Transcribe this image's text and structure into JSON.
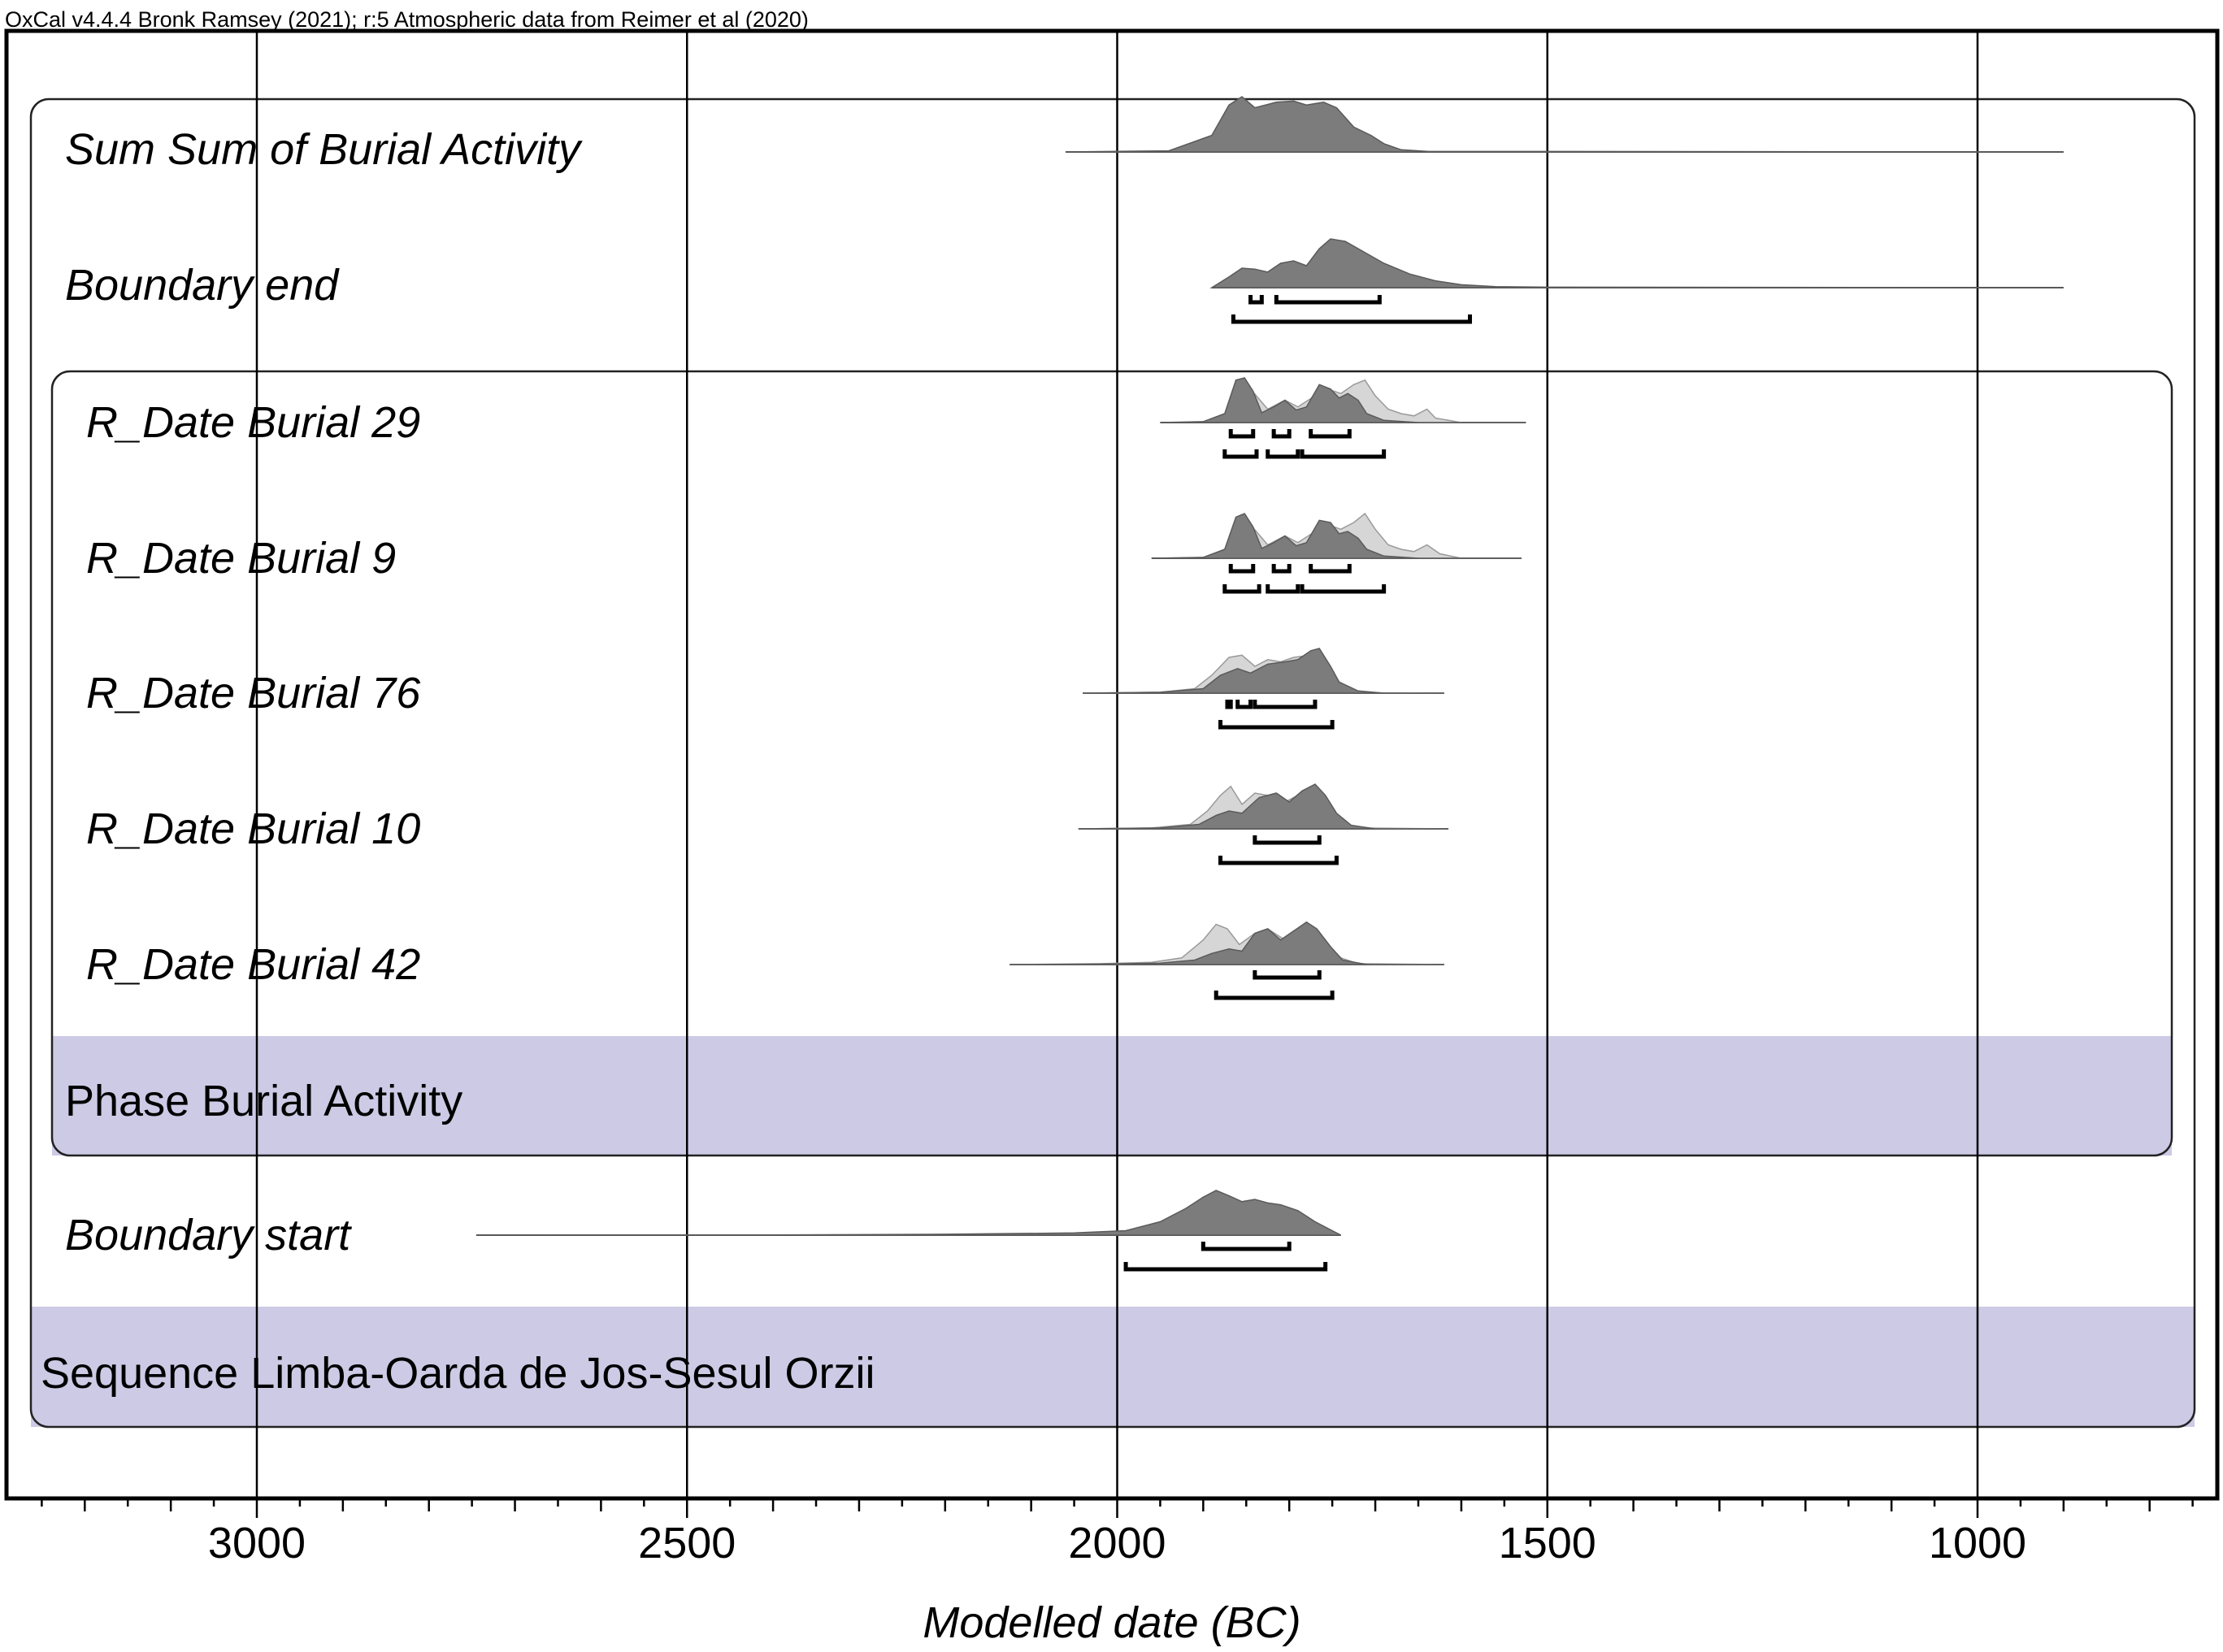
{
  "credit": "OxCal v4.4.4 Bronk Ramsey (2021); r:5 Atmospheric data from Reimer et al (2020)",
  "chart_data": {
    "type": "oxcal-multiplot",
    "x_axis": {
      "label": "Modelled date (BC)",
      "range": [
        3250,
        700
      ],
      "reversed": true,
      "major_ticks": [
        3000,
        2500,
        2000,
        1500,
        1000
      ],
      "minor_tick_step": 50,
      "grid_at": [
        3000,
        2500,
        2000,
        1500,
        1000
      ]
    },
    "group_colors": {
      "phase_band": "#cdcae6",
      "posterior": "#7c7c7c",
      "prior": "#d6d6d6",
      "frame": "#222222"
    },
    "rows": [
      {
        "label": "Sum Sum of Burial Activity",
        "kind": "sum",
        "range": [
          2060,
          900
        ],
        "posterior": [
          [
            2060,
            0
          ],
          [
            1940,
            0.02
          ],
          [
            1890,
            0.3
          ],
          [
            1870,
            0.85
          ],
          [
            1855,
            1
          ],
          [
            1840,
            0.8
          ],
          [
            1815,
            0.9
          ],
          [
            1795,
            0.92
          ],
          [
            1780,
            0.85
          ],
          [
            1760,
            0.9
          ],
          [
            1745,
            0.8
          ],
          [
            1725,
            0.45
          ],
          [
            1705,
            0.3
          ],
          [
            1690,
            0.15
          ],
          [
            1670,
            0.04
          ],
          [
            1640,
            0.01
          ],
          [
            900,
            0
          ]
        ],
        "ranges_68": [],
        "ranges_95": []
      },
      {
        "label": "Boundary end",
        "kind": "boundary",
        "range": [
          1890,
          900
        ],
        "posterior": [
          [
            1890,
            0
          ],
          [
            1870,
            0.22
          ],
          [
            1855,
            0.4
          ],
          [
            1840,
            0.38
          ],
          [
            1825,
            0.32
          ],
          [
            1810,
            0.5
          ],
          [
            1795,
            0.55
          ],
          [
            1780,
            0.45
          ],
          [
            1765,
            0.8
          ],
          [
            1752,
            1
          ],
          [
            1735,
            0.95
          ],
          [
            1715,
            0.75
          ],
          [
            1690,
            0.5
          ],
          [
            1660,
            0.28
          ],
          [
            1630,
            0.14
          ],
          [
            1600,
            0.06
          ],
          [
            1560,
            0.02
          ],
          [
            1500,
            0.01
          ],
          [
            900,
            0
          ]
        ],
        "ranges_68": [
          [
            1845,
            1832
          ],
          [
            1815,
            1695
          ]
        ],
        "ranges_95": [
          [
            1865,
            1590
          ]
        ]
      },
      {
        "label": "R_Date Burial 29",
        "kind": "date",
        "range": [
          1950,
          1525
        ],
        "prior": [
          [
            1880,
            0
          ],
          [
            1860,
            0.7
          ],
          [
            1845,
            0.75
          ],
          [
            1825,
            0.3
          ],
          [
            1805,
            0.5
          ],
          [
            1790,
            0.35
          ],
          [
            1770,
            0.6
          ],
          [
            1755,
            0.75
          ],
          [
            1740,
            0.65
          ],
          [
            1725,
            0.85
          ],
          [
            1712,
            0.95
          ],
          [
            1700,
            0.6
          ],
          [
            1685,
            0.3
          ],
          [
            1670,
            0.2
          ],
          [
            1655,
            0.15
          ],
          [
            1640,
            0.3
          ],
          [
            1630,
            0.1
          ],
          [
            1600,
            0
          ],
          [
            1525,
            0
          ]
        ],
        "posterior": [
          [
            1950,
            0
          ],
          [
            1900,
            0.02
          ],
          [
            1875,
            0.2
          ],
          [
            1862,
            0.95
          ],
          [
            1852,
            1
          ],
          [
            1842,
            0.7
          ],
          [
            1832,
            0.22
          ],
          [
            1818,
            0.35
          ],
          [
            1805,
            0.5
          ],
          [
            1792,
            0.28
          ],
          [
            1780,
            0.35
          ],
          [
            1765,
            0.85
          ],
          [
            1752,
            0.75
          ],
          [
            1742,
            0.55
          ],
          [
            1732,
            0.65
          ],
          [
            1720,
            0.5
          ],
          [
            1710,
            0.2
          ],
          [
            1690,
            0.05
          ],
          [
            1650,
            0
          ],
          [
            1525,
            0
          ]
        ],
        "ranges_68": [
          [
            1868,
            1842
          ],
          [
            1818,
            1800
          ],
          [
            1775,
            1730
          ]
        ],
        "ranges_95": [
          [
            1875,
            1838
          ],
          [
            1825,
            1790
          ],
          [
            1785,
            1690
          ]
        ]
      },
      {
        "label": "R_Date Burial 9",
        "kind": "date",
        "range": [
          1960,
          1530
        ],
        "prior": [
          [
            1880,
            0
          ],
          [
            1860,
            0.6
          ],
          [
            1845,
            0.75
          ],
          [
            1825,
            0.3
          ],
          [
            1805,
            0.5
          ],
          [
            1790,
            0.35
          ],
          [
            1770,
            0.6
          ],
          [
            1755,
            0.75
          ],
          [
            1740,
            0.65
          ],
          [
            1725,
            0.8
          ],
          [
            1712,
            1
          ],
          [
            1700,
            0.65
          ],
          [
            1685,
            0.3
          ],
          [
            1670,
            0.2
          ],
          [
            1655,
            0.15
          ],
          [
            1640,
            0.3
          ],
          [
            1625,
            0.1
          ],
          [
            1600,
            0
          ],
          [
            1530,
            0
          ]
        ],
        "posterior": [
          [
            1960,
            0
          ],
          [
            1900,
            0.02
          ],
          [
            1875,
            0.2
          ],
          [
            1862,
            0.92
          ],
          [
            1852,
            1
          ],
          [
            1842,
            0.7
          ],
          [
            1832,
            0.22
          ],
          [
            1818,
            0.35
          ],
          [
            1805,
            0.5
          ],
          [
            1792,
            0.28
          ],
          [
            1780,
            0.35
          ],
          [
            1765,
            0.85
          ],
          [
            1752,
            0.8
          ],
          [
            1742,
            0.55
          ],
          [
            1732,
            0.6
          ],
          [
            1720,
            0.45
          ],
          [
            1710,
            0.2
          ],
          [
            1690,
            0.05
          ],
          [
            1650,
            0
          ],
          [
            1530,
            0
          ]
        ],
        "ranges_68": [
          [
            1868,
            1842
          ],
          [
            1818,
            1800
          ],
          [
            1775,
            1730
          ]
        ],
        "ranges_95": [
          [
            1875,
            1835
          ],
          [
            1825,
            1790
          ],
          [
            1785,
            1690
          ]
        ]
      },
      {
        "label": "R_Date Burial 76",
        "kind": "date",
        "range": [
          2040,
          1620
        ],
        "prior": [
          [
            2040,
            0
          ],
          [
            1950,
            0.02
          ],
          [
            1910,
            0.1
          ],
          [
            1890,
            0.4
          ],
          [
            1870,
            0.8
          ],
          [
            1855,
            0.85
          ],
          [
            1840,
            0.6
          ],
          [
            1825,
            0.75
          ],
          [
            1810,
            0.7
          ],
          [
            1795,
            0.8
          ],
          [
            1775,
            0.85
          ],
          [
            1760,
            0.75
          ],
          [
            1745,
            0.3
          ],
          [
            1730,
            0.05
          ],
          [
            1700,
            0.01
          ],
          [
            1620,
            0
          ]
        ],
        "posterior": [
          [
            2040,
            0
          ],
          [
            1950,
            0.02
          ],
          [
            1900,
            0.1
          ],
          [
            1880,
            0.4
          ],
          [
            1860,
            0.55
          ],
          [
            1845,
            0.45
          ],
          [
            1825,
            0.65
          ],
          [
            1805,
            0.7
          ],
          [
            1790,
            0.75
          ],
          [
            1775,
            0.95
          ],
          [
            1765,
            1
          ],
          [
            1752,
            0.6
          ],
          [
            1742,
            0.25
          ],
          [
            1720,
            0.05
          ],
          [
            1690,
            0
          ],
          [
            1620,
            0
          ]
        ],
        "ranges_68": [
          [
            1872,
            1868
          ],
          [
            1860,
            1845
          ],
          [
            1840,
            1770
          ]
        ],
        "ranges_95": [
          [
            1880,
            1750
          ]
        ]
      },
      {
        "label": "R_Date Burial 10",
        "kind": "date",
        "range": [
          2045,
          1615
        ],
        "prior": [
          [
            2045,
            0
          ],
          [
            1960,
            0.02
          ],
          [
            1915,
            0.1
          ],
          [
            1895,
            0.4
          ],
          [
            1880,
            0.75
          ],
          [
            1868,
            0.95
          ],
          [
            1855,
            0.55
          ],
          [
            1840,
            0.8
          ],
          [
            1825,
            0.75
          ],
          [
            1805,
            0.6
          ],
          [
            1785,
            0.8
          ],
          [
            1770,
            0.85
          ],
          [
            1755,
            0.45
          ],
          [
            1740,
            0.15
          ],
          [
            1720,
            0.02
          ],
          [
            1615,
            0
          ]
        ],
        "posterior": [
          [
            2045,
            0
          ],
          [
            1950,
            0.02
          ],
          [
            1905,
            0.1
          ],
          [
            1885,
            0.3
          ],
          [
            1870,
            0.4
          ],
          [
            1855,
            0.35
          ],
          [
            1835,
            0.7
          ],
          [
            1815,
            0.8
          ],
          [
            1800,
            0.6
          ],
          [
            1785,
            0.85
          ],
          [
            1770,
            1
          ],
          [
            1758,
            0.75
          ],
          [
            1745,
            0.35
          ],
          [
            1728,
            0.08
          ],
          [
            1700,
            0
          ],
          [
            1615,
            0
          ]
        ],
        "ranges_68": [
          [
            1840,
            1765
          ]
        ],
        "ranges_95": [
          [
            1880,
            1745
          ]
        ]
      },
      {
        "label": "R_Date Burial 42",
        "kind": "date",
        "range": [
          2125,
          1620
        ],
        "prior": [
          [
            2125,
            0
          ],
          [
            2020,
            0.02
          ],
          [
            1960,
            0.05
          ],
          [
            1925,
            0.15
          ],
          [
            1900,
            0.55
          ],
          [
            1885,
            0.9
          ],
          [
            1872,
            0.8
          ],
          [
            1858,
            0.45
          ],
          [
            1840,
            0.7
          ],
          [
            1825,
            0.8
          ],
          [
            1805,
            0.55
          ],
          [
            1785,
            0.75
          ],
          [
            1770,
            0.8
          ],
          [
            1755,
            0.45
          ],
          [
            1740,
            0.15
          ],
          [
            1720,
            0.02
          ],
          [
            1620,
            0
          ]
        ],
        "posterior": [
          [
            2125,
            0
          ],
          [
            2020,
            0.01
          ],
          [
            1950,
            0.03
          ],
          [
            1910,
            0.1
          ],
          [
            1890,
            0.25
          ],
          [
            1870,
            0.35
          ],
          [
            1855,
            0.3
          ],
          [
            1840,
            0.7
          ],
          [
            1825,
            0.8
          ],
          [
            1810,
            0.55
          ],
          [
            1795,
            0.75
          ],
          [
            1780,
            0.95
          ],
          [
            1768,
            0.8
          ],
          [
            1752,
            0.4
          ],
          [
            1738,
            0.1
          ],
          [
            1710,
            0
          ],
          [
            1620,
            0
          ]
        ],
        "ranges_68": [
          [
            1840,
            1765
          ]
        ],
        "ranges_95": [
          [
            1885,
            1750
          ]
        ]
      },
      {
        "label": "Phase Burial Activity",
        "kind": "phase-band"
      },
      {
        "label": "Boundary start",
        "kind": "boundary",
        "range": [
          2745,
          1740
        ],
        "posterior": [
          [
            2745,
            0
          ],
          [
            2400,
            0.005
          ],
          [
            2200,
            0.02
          ],
          [
            2050,
            0.05
          ],
          [
            1990,
            0.1
          ],
          [
            1950,
            0.3
          ],
          [
            1920,
            0.6
          ],
          [
            1900,
            0.85
          ],
          [
            1885,
            1
          ],
          [
            1870,
            0.88
          ],
          [
            1855,
            0.75
          ],
          [
            1840,
            0.8
          ],
          [
            1825,
            0.72
          ],
          [
            1810,
            0.68
          ],
          [
            1790,
            0.55
          ],
          [
            1770,
            0.3
          ],
          [
            1750,
            0.1
          ],
          [
            1740,
            0
          ]
        ],
        "ranges_68": [
          [
            1900,
            1800
          ]
        ],
        "ranges_95": [
          [
            1990,
            1758
          ]
        ]
      },
      {
        "label": "Sequence Limba-Oarda de Jos-Sesul Orzii",
        "kind": "sequence-band"
      }
    ]
  }
}
